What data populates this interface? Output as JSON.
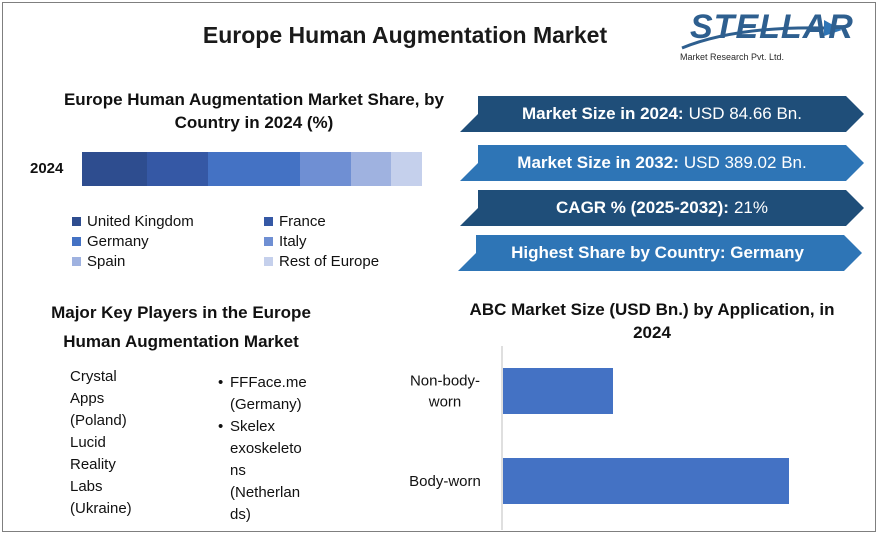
{
  "header": {
    "title": "Europe Human Augmentation Market",
    "logo_text": "STELLAR",
    "logo_subtitle": "Market Research Pvt. Ltd."
  },
  "chart_data": [
    {
      "type": "bar",
      "title": "Europe Human Augmentation Market Share, by Country in 2024 (%)",
      "stacked": true,
      "orientation": "horizontal",
      "categories": [
        "2024"
      ],
      "series": [
        {
          "name": "United Kingdom",
          "values": [
            19
          ],
          "color": "#2e4d8f"
        },
        {
          "name": "France",
          "values": [
            18
          ],
          "color": "#3558a5"
        },
        {
          "name": "Germany",
          "values": [
            27
          ],
          "color": "#4472c4"
        },
        {
          "name": "Italy",
          "values": [
            15
          ],
          "color": "#6f8fd3"
        },
        {
          "name": "Spain",
          "values": [
            12
          ],
          "color": "#9fb2e0"
        },
        {
          "name": "Rest of Europe",
          "values": [
            9
          ],
          "color": "#c5d0ec"
        }
      ],
      "legend_position": "bottom"
    },
    {
      "type": "bar",
      "orientation": "horizontal",
      "title": "ABC Market Size (USD Bn.) by Application, in 2024",
      "categories": [
        "Non-body-worn",
        "Body-worn"
      ],
      "values": [
        20,
        52
      ],
      "xlim": [
        0,
        60
      ],
      "color": "#4472c4",
      "grid": false
    }
  ],
  "stats": [
    {
      "label": "Market Size in 2024:",
      "value": "USD 84.66 Bn."
    },
    {
      "label": "Market Size in 2032:",
      "value": "USD 389.02 Bn."
    },
    {
      "label": "CAGR % (2025-2032):",
      "value": "21%"
    },
    {
      "label": "Highest Share by Country: Germany",
      "value": ""
    }
  ],
  "key_players": {
    "title_line1": "Major Key Players in the Europe",
    "title_line2": "Human Augmentation Market",
    "left": [
      "Crystal",
      "Apps",
      "(Poland)",
      "Lucid",
      "Reality",
      "Labs",
      "(Ukraine)"
    ],
    "right": [
      {
        "bullet": "•",
        "text": "FFFace.me"
      },
      {
        "bullet": "",
        "text": "(Germany)"
      },
      {
        "bullet": "•",
        "text": "Skelex"
      },
      {
        "bullet": "",
        "text": "exoskeleto"
      },
      {
        "bullet": "",
        "text": "ns"
      },
      {
        "bullet": "",
        "text": "(Netherlan"
      },
      {
        "bullet": "",
        "text": "ds)"
      }
    ]
  },
  "colors": {
    "stat_dark": "#1f4e79",
    "stat_light": "#2e75b6",
    "bar": "#4472c4"
  }
}
